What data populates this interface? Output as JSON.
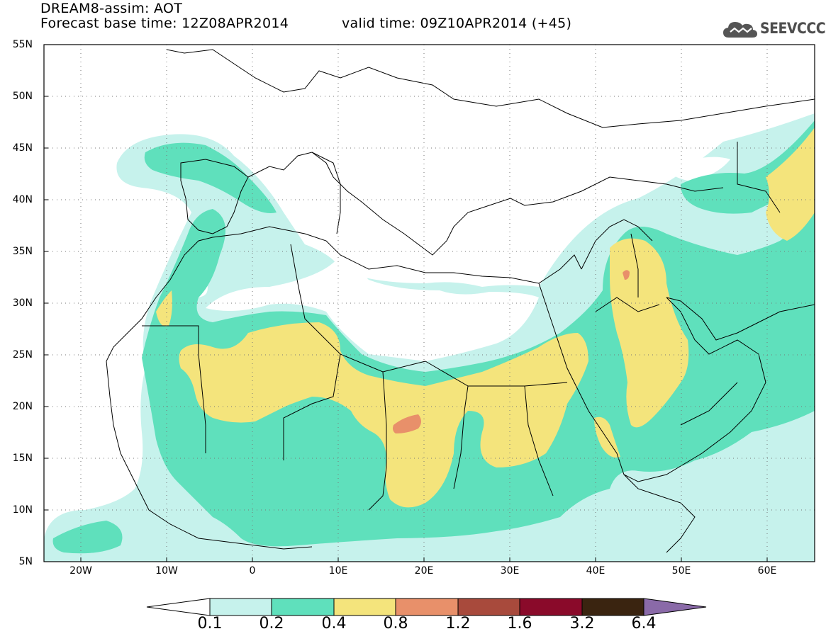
{
  "header": {
    "title_line1": "DREAM8-assim: AOT",
    "base_time": "Forecast base time: 12Z08APR2014",
    "valid_time": "valid time: 09Z10APR2014 (+45)",
    "logo_text": "SEEVCCC",
    "logo_icon": "cloud-icon"
  },
  "map": {
    "projection": "lat-lon",
    "lon_range": [
      -25,
      65
    ],
    "lat_range": [
      5,
      55
    ],
    "grid": "dotted",
    "lat_labels": [
      "55N",
      "50N",
      "45N",
      "40N",
      "35N",
      "30N",
      "25N",
      "20N",
      "15N",
      "10N",
      "5N"
    ],
    "lon_labels": [
      "20W",
      "10W",
      "0",
      "10E",
      "20E",
      "30E",
      "40E",
      "50E",
      "60E"
    ],
    "max_region_lonlat": [
      18,
      18.5
    ]
  },
  "colorbar": {
    "labels": [
      "0.1",
      "0.2",
      "0.4",
      "0.8",
      "1.2",
      "1.6",
      "3.2",
      "6.4"
    ],
    "colors": [
      "#c6f2ec",
      "#5fe0bc",
      "#f4e47c",
      "#e8906a",
      "#a84a3c",
      "#8a0a2a",
      "#3a2410",
      "#8a6aa8"
    ],
    "extend": "both"
  }
}
